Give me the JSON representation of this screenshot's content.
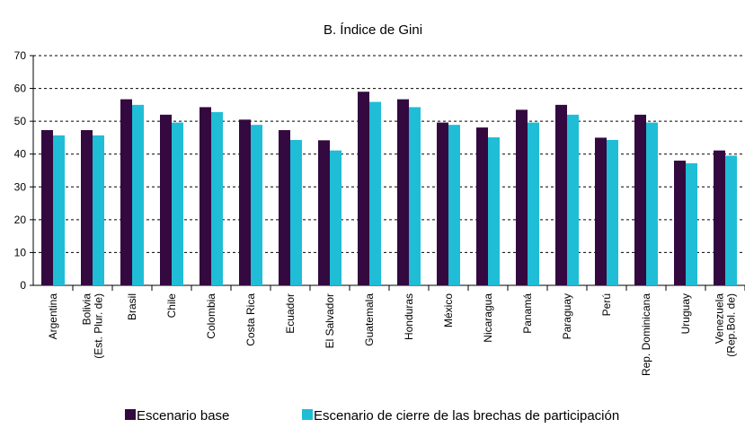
{
  "chart_data": {
    "type": "bar",
    "title": "B. Índice de Gini",
    "categories": [
      "Argentina",
      "Bolivia\n(Est. Plur. de)",
      "Brasil",
      "Chile",
      "Colombia",
      "Costa Rica",
      "Ecuador",
      "El Salvador",
      "Guatemala",
      "Honduras",
      "México",
      "Nicaragua",
      "Panamá",
      "Paraguay",
      "Perú",
      "Rep. Dominicana",
      "Uruguay",
      "Venezuela\n(Rep.Bol. de)"
    ],
    "series": [
      {
        "name": "Escenario base",
        "color": "#33093f",
        "values": [
          47.3,
          47.3,
          56.7,
          52,
          54.3,
          50.5,
          47.3,
          44.2,
          59,
          56.7,
          49.6,
          48.1,
          53.5,
          55,
          45,
          52,
          38,
          41.1
        ]
      },
      {
        "name": "Escenario de cierre de las brechas de participación",
        "color": "#1fbdd6",
        "values": [
          45.7,
          45.7,
          55,
          49.6,
          52.8,
          48.9,
          44.3,
          41.1,
          55.9,
          54.3,
          48.9,
          45.1,
          49.6,
          52,
          44.3,
          49.6,
          37.2,
          39.5
        ]
      }
    ],
    "ylim": [
      0,
      70
    ],
    "yticks": [
      0,
      10,
      20,
      30,
      40,
      50,
      60,
      70
    ],
    "grid": true
  }
}
